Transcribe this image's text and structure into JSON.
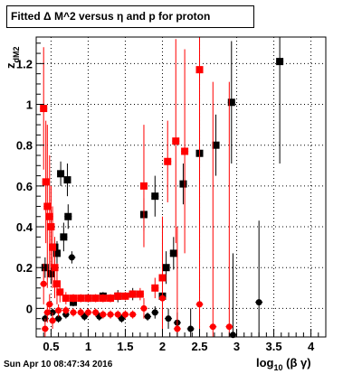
{
  "title": "Fitted Δ M^2 versus η and p for proton",
  "footer": "Sun Apr 10 08:47:34 2016",
  "chart_data": {
    "type": "scatter",
    "title": "Fitted Δ M^2 versus η and p for proton",
    "xlabel": "log10 (β γ)",
    "ylabel": "z dM2",
    "xlim": [
      0.3,
      4.2
    ],
    "ylim": [
      -0.14,
      1.33
    ],
    "x_ticks": [
      0.5,
      1,
      1.5,
      2,
      2.5,
      3,
      3.5,
      4
    ],
    "x_tick_labels": [
      "0.5",
      "1",
      "1.5",
      "2",
      "2.5",
      "3",
      "3.5",
      "4"
    ],
    "y_ticks": [
      0,
      0.2,
      0.4,
      0.6,
      0.8,
      1,
      1.2
    ],
    "y_tick_labels": [
      "0",
      "0.2",
      "0.4",
      "0.6",
      "0.8",
      "1",
      "1.2"
    ],
    "grid": true,
    "series": [
      {
        "color": "#000000",
        "marker": "square",
        "points": [
          [
            0.42,
            0.2,
            0.05
          ],
          [
            0.5,
            0.17,
            0.05
          ],
          [
            0.55,
            0.3,
            0.05
          ],
          [
            0.58,
            0.27,
            0.06
          ],
          [
            0.63,
            0.66,
            0.06
          ],
          [
            0.67,
            0.35,
            0.07
          ],
          [
            0.72,
            0.63,
            0.08
          ],
          [
            0.73,
            0.45,
            0.06
          ],
          [
            0.8,
            0.03,
            0.02
          ],
          [
            1.0,
            0.05,
            0.02
          ],
          [
            1.2,
            0.06,
            0.02
          ],
          [
            1.4,
            0.06,
            0.03
          ],
          [
            1.6,
            0.07,
            0.03
          ],
          [
            1.75,
            0.46,
            0.08
          ],
          [
            1.9,
            0.55,
            0.1
          ],
          [
            2.0,
            0.06,
            0.06
          ],
          [
            2.05,
            0.2,
            0.08
          ],
          [
            2.15,
            0.27,
            0.08
          ],
          [
            2.28,
            0.61,
            0.1
          ],
          [
            2.5,
            0.76,
            0.2
          ],
          [
            2.72,
            0.8,
            0.15
          ],
          [
            2.93,
            1.01,
            0.3
          ],
          [
            3.58,
            1.21,
            0.5
          ]
        ]
      },
      {
        "color": "#000000",
        "marker": "circle",
        "points": [
          [
            0.42,
            -0.05,
            0.02
          ],
          [
            0.52,
            -0.02,
            0.02
          ],
          [
            0.6,
            -0.05,
            0.02
          ],
          [
            0.7,
            -0.03,
            0.02
          ],
          [
            0.78,
            0.25,
            0.03
          ],
          [
            0.95,
            -0.04,
            0.02
          ],
          [
            1.15,
            -0.04,
            0.02
          ],
          [
            1.45,
            -0.05,
            0.02
          ],
          [
            1.8,
            -0.04,
            0.02
          ],
          [
            1.9,
            -0.02,
            0.03
          ],
          [
            2.08,
            -0.05,
            0.05
          ],
          [
            2.2,
            -0.07,
            0.05
          ],
          [
            2.38,
            -0.1,
            0.1
          ],
          [
            2.95,
            -0.13,
            0.4
          ],
          [
            3.3,
            0.03,
            0.4
          ]
        ]
      },
      {
        "color": "#ff0000",
        "marker": "square",
        "points": [
          [
            0.4,
            0.98,
            0.3
          ],
          [
            0.43,
            0.62,
            0.3
          ],
          [
            0.45,
            0.5,
            0.4
          ],
          [
            0.48,
            0.45,
            0.3
          ],
          [
            0.5,
            0.4,
            0.2
          ],
          [
            0.52,
            0.3,
            0.2
          ],
          [
            0.55,
            0.2,
            0.15
          ],
          [
            0.58,
            0.12,
            0.1
          ],
          [
            0.62,
            0.08,
            0.05
          ],
          [
            0.7,
            0.05,
            0.03
          ],
          [
            0.8,
            0.05,
            0.02
          ],
          [
            0.9,
            0.05,
            0.02
          ],
          [
            1.0,
            0.05,
            0.02
          ],
          [
            1.1,
            0.05,
            0.02
          ],
          [
            1.2,
            0.05,
            0.02
          ],
          [
            1.3,
            0.05,
            0.02
          ],
          [
            1.4,
            0.06,
            0.02
          ],
          [
            1.5,
            0.06,
            0.02
          ],
          [
            1.6,
            0.07,
            0.02
          ],
          [
            1.7,
            0.07,
            0.03
          ],
          [
            1.75,
            0.6,
            0.3
          ],
          [
            1.9,
            0.1,
            0.05
          ],
          [
            2.0,
            0.15,
            0.2
          ],
          [
            2.07,
            0.72,
            0.2
          ],
          [
            2.18,
            0.82,
            0.5
          ],
          [
            2.3,
            0.77,
            0.5
          ],
          [
            2.5,
            1.17,
            0.8
          ]
        ]
      },
      {
        "color": "#ff0000",
        "marker": "circle",
        "points": [
          [
            0.4,
            0.12,
            0.1
          ],
          [
            0.42,
            -0.1,
            0.05
          ],
          [
            0.45,
            -0.02,
            0.05
          ],
          [
            0.48,
            0.02,
            0.05
          ],
          [
            0.52,
            -0.06,
            0.04
          ],
          [
            0.6,
            -0.01,
            0.03
          ],
          [
            0.7,
            -0.01,
            0.02
          ],
          [
            0.8,
            -0.02,
            0.02
          ],
          [
            0.9,
            -0.02,
            0.02
          ],
          [
            1.0,
            -0.02,
            0.02
          ],
          [
            1.1,
            -0.02,
            0.02
          ],
          [
            1.2,
            -0.03,
            0.02
          ],
          [
            1.3,
            -0.03,
            0.02
          ],
          [
            1.4,
            -0.03,
            0.02
          ],
          [
            1.5,
            -0.03,
            0.02
          ],
          [
            1.6,
            -0.03,
            0.02
          ],
          [
            1.75,
            0.0,
            0.05
          ],
          [
            2.0,
            0.05,
            0.4
          ],
          [
            2.2,
            -0.1,
            0.5
          ],
          [
            2.5,
            0.02,
            0.5
          ],
          [
            2.68,
            -0.09,
            1.2
          ],
          [
            2.9,
            -0.09,
            1.2
          ]
        ]
      }
    ]
  }
}
